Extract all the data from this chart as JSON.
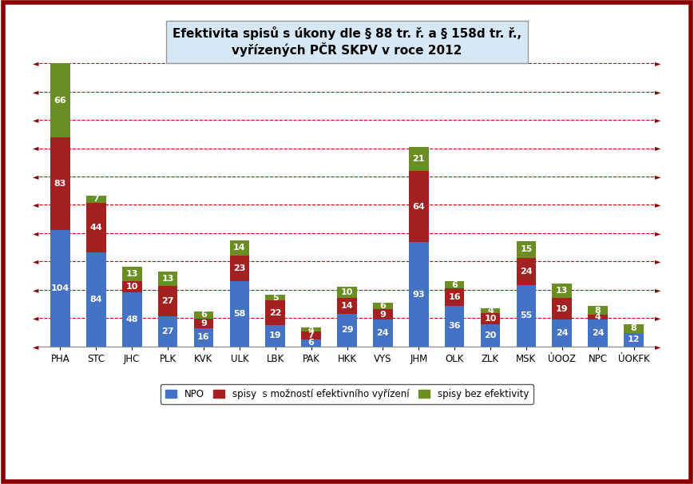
{
  "categories": [
    "PHA",
    "STC",
    "JHC",
    "PLK",
    "KVK",
    "ULK",
    "LBK",
    "PAK",
    "HKK",
    "VYS",
    "JHM",
    "OLK",
    "ZLK",
    "MSK",
    "ÚOOZ",
    "NPC",
    "ÚOKFK"
  ],
  "npo": [
    104,
    84,
    48,
    27,
    16,
    58,
    19,
    6,
    29,
    24,
    93,
    36,
    20,
    55,
    24,
    24,
    12
  ],
  "spisy_moznost": [
    83,
    44,
    10,
    27,
    9,
    23,
    22,
    7,
    14,
    9,
    64,
    16,
    10,
    24,
    19,
    4,
    0
  ],
  "spisy_bez": [
    66,
    7,
    13,
    13,
    6,
    14,
    5,
    4,
    10,
    6,
    21,
    6,
    4,
    15,
    13,
    8,
    8
  ],
  "color_npo": "#4472C4",
  "color_moznost": "#A52020",
  "color_bez": "#6B8E23",
  "title_line1": "Efektivita spisů s úkony dle § 88 tr. ř. a § 158d tr. ř.,",
  "title_line2": "vyřízených PČR SKPV v roce 2012",
  "legend_npo": "NPO",
  "legend_moznost": "spisy  s možností efektivního vyřízení",
  "legend_bez": "spisy bez efektivity",
  "background_color": "#FFFFFF",
  "title_bg": "#D6E8F5",
  "border_color": "#8B0000",
  "grid_color": "#CC0000",
  "label_fontsize": 8.0,
  "bar_width": 0.55,
  "ymax": 253
}
